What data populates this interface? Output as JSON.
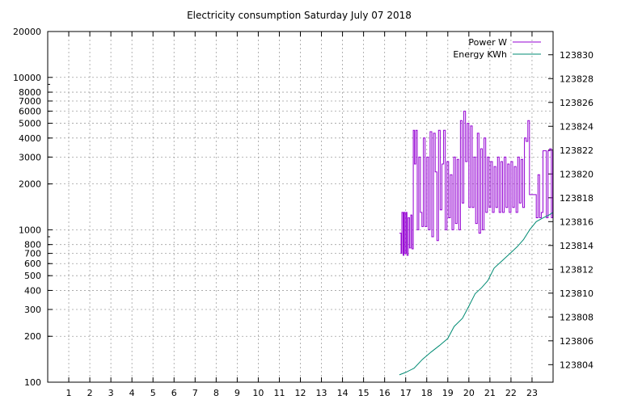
{
  "chart_data": {
    "type": "line",
    "title": "Electricity consumption Saturday July 07 2018",
    "xlim": [
      0,
      24
    ],
    "x_ticks": [
      "1",
      "2",
      "3",
      "4",
      "5",
      "6",
      "7",
      "8",
      "9",
      "10",
      "11",
      "12",
      "13",
      "14",
      "15",
      "16",
      "17",
      "18",
      "19",
      "20",
      "21",
      "22",
      "23"
    ],
    "y_left": {
      "scale": "log",
      "lim": [
        100,
        20000
      ],
      "ticks": [
        {
          "v": 100,
          "label": "100"
        },
        {
          "v": 200,
          "label": "200"
        },
        {
          "v": 300,
          "label": "300"
        },
        {
          "v": 400,
          "label": "400"
        },
        {
          "v": 500,
          "label": "500"
        },
        {
          "v": 600,
          "label": "600"
        },
        {
          "v": 700,
          "label": "700"
        },
        {
          "v": 800,
          "label": "800"
        },
        {
          "v": 1000,
          "label": "1000"
        },
        {
          "v": 2000,
          "label": "2000"
        },
        {
          "v": 3000,
          "label": "3000"
        },
        {
          "v": 4000,
          "label": "4000"
        },
        {
          "v": 5000,
          "label": "5000"
        },
        {
          "v": 6000,
          "label": "6000"
        },
        {
          "v": 7000,
          "label": "7000"
        },
        {
          "v": 8000,
          "label": "8000"
        },
        {
          "v": 10000,
          "label": "10000"
        },
        {
          "v": 20000,
          "label": "20000"
        }
      ]
    },
    "y_right": {
      "scale": "linear",
      "lim": [
        123802.53,
        123831.95
      ],
      "ticks": [
        "123804",
        "123806",
        "123808",
        "123810",
        "123812",
        "123814",
        "123816",
        "123818",
        "123820",
        "123822",
        "123824",
        "123826",
        "123828",
        "123830"
      ]
    },
    "grid": true,
    "legend_position": "top-right",
    "series": [
      {
        "name": "Power W",
        "axis": "left",
        "color": "#9400d3",
        "x": [
          16.7,
          16.78,
          16.82,
          16.88,
          16.92,
          16.97,
          17.02,
          17.06,
          17.12,
          17.18,
          17.24,
          17.3,
          17.36,
          17.42,
          17.48,
          17.55,
          17.62,
          17.7,
          17.77,
          17.84,
          17.92,
          18.0,
          18.08,
          18.16,
          18.24,
          18.32,
          18.4,
          18.48,
          18.56,
          18.64,
          18.72,
          18.8,
          18.88,
          18.96,
          19.04,
          19.12,
          19.2,
          19.28,
          19.36,
          19.44,
          19.52,
          19.6,
          19.68,
          19.76,
          19.84,
          19.92,
          20.0,
          20.08,
          20.16,
          20.24,
          20.32,
          20.4,
          20.48,
          20.56,
          20.64,
          20.72,
          20.8,
          20.88,
          20.96,
          21.04,
          21.12,
          21.2,
          21.28,
          21.36,
          21.44,
          21.52,
          21.6,
          21.68,
          21.76,
          21.84,
          21.92,
          22.0,
          22.08,
          22.16,
          22.24,
          22.32,
          22.4,
          22.48,
          22.56,
          22.64,
          22.72,
          22.8,
          22.88,
          22.96,
          23.04,
          23.12,
          23.2,
          23.28,
          23.36,
          23.44,
          23.52,
          23.6,
          23.68,
          23.76,
          23.84,
          23.92,
          23.98
        ],
        "y": [
          950,
          700,
          1300,
          680,
          1300,
          700,
          1300,
          680,
          1200,
          760,
          1250,
          750,
          4500,
          2700,
          4500,
          1000,
          3000,
          1300,
          1050,
          4000,
          1050,
          3000,
          1000,
          4400,
          900,
          4300,
          2400,
          850,
          4500,
          1350,
          2700,
          4500,
          1000,
          2800,
          1200,
          2300,
          1000,
          3000,
          1100,
          2900,
          1000,
          5200,
          1500,
          6000,
          2800,
          5000,
          1400,
          4800,
          1400,
          3000,
          1100,
          4300,
          950,
          3400,
          1000,
          4000,
          1300,
          3000,
          1400,
          2800,
          1300,
          2600,
          1400,
          3000,
          1300,
          2800,
          1300,
          3000,
          1400,
          2700,
          1300,
          2800,
          1400,
          2600,
          1300,
          3000,
          1500,
          2900,
          1400,
          4000,
          3800,
          5200,
          1700,
          1700,
          1700,
          1700,
          1200,
          2300,
          1200,
          1300,
          3300,
          3300,
          1200,
          3300,
          3400,
          1200,
          3300
        ]
      },
      {
        "name": "Energy KWh",
        "axis": "right",
        "color": "#008b73",
        "x": [
          16.7,
          17.0,
          17.4,
          17.8,
          18.2,
          18.6,
          19.0,
          19.3,
          19.7,
          20.0,
          20.3,
          20.6,
          20.9,
          21.2,
          21.6,
          22.0,
          22.3,
          22.6,
          22.9,
          23.2,
          23.5,
          23.8,
          23.98
        ],
        "y": [
          123803.15,
          123803.35,
          123803.7,
          123804.45,
          123805.05,
          123805.6,
          123806.2,
          123807.2,
          123807.9,
          123808.9,
          123809.95,
          123810.45,
          123811.05,
          123812.1,
          123812.75,
          123813.4,
          123813.9,
          123814.5,
          123815.35,
          123816.0,
          123816.3,
          123816.55,
          123816.75
        ]
      }
    ]
  }
}
